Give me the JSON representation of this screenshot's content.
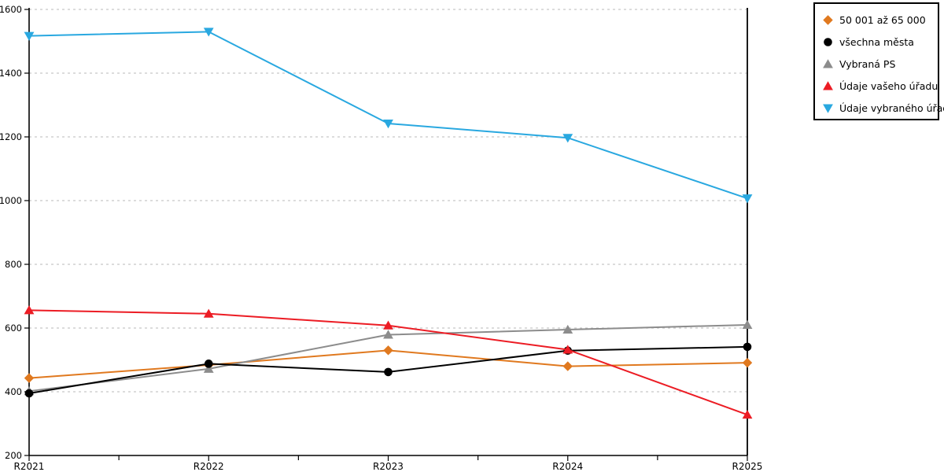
{
  "chart_data": {
    "type": "line",
    "title": "",
    "categories": [
      "R2021",
      "R2022",
      "R2023",
      "R2024",
      "R2025"
    ],
    "ylim": [
      200,
      1600
    ],
    "ytick_step": 200,
    "grid": "horizontal dotted lines at every labeled y tick",
    "legend_position": "top-right, outside plot, boxed",
    "axis_color": "#000000",
    "grid_color": "#c6c6c6",
    "background_color": "#ffffff",
    "minor_x_ticks_between_categories": true,
    "series": [
      {
        "name": "50 001 až 65 000",
        "marker": "diamond",
        "color": "#e0791f",
        "values": [
          443,
          484,
          530,
          480,
          491
        ]
      },
      {
        "name": "všechna města",
        "marker": "circle",
        "color": "#000000",
        "values": [
          395,
          488,
          462,
          529,
          541
        ]
      },
      {
        "name": "Vybraná PS",
        "marker": "triangle-up",
        "color": "#8c8c8c",
        "values": [
          402,
          472,
          579,
          595,
          610
        ]
      },
      {
        "name": "Údaje vašeho úřadu",
        "marker": "triangle-up",
        "color": "#ec1c24",
        "values": [
          656,
          645,
          608,
          532,
          328
        ]
      },
      {
        "name": "Údaje vybraného úřadu",
        "marker": "triangle-down",
        "color": "#29a8e0",
        "values": [
          1517,
          1530,
          1242,
          1197,
          1007
        ]
      }
    ],
    "draw_order": [
      0,
      2,
      1,
      3,
      4
    ]
  }
}
